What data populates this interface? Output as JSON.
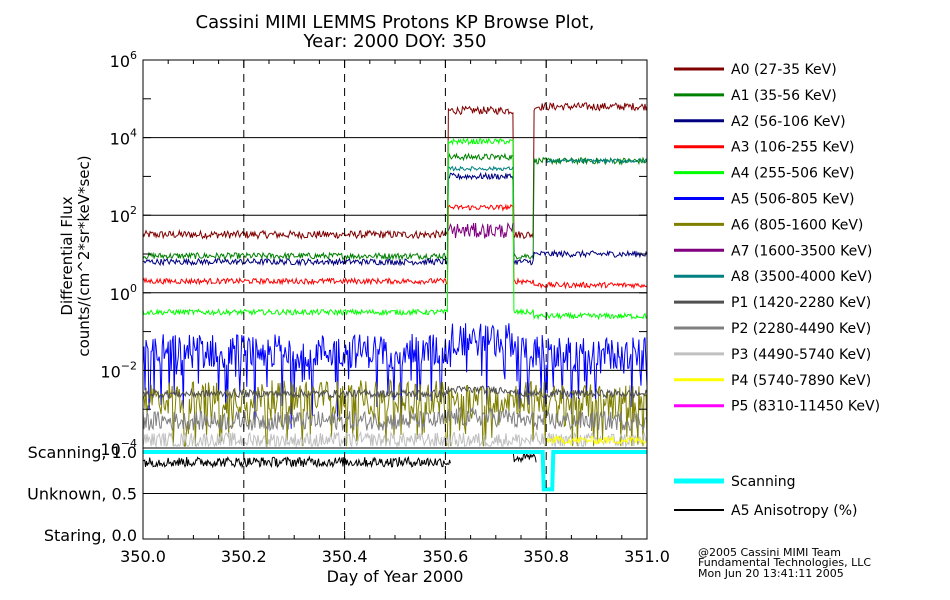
{
  "chart_data": {
    "type": "line",
    "title_line1": "Cassini MIMI LEMMS Protons KP Browse Plot,",
    "title_line2": "Year: 2000 DOY: 350",
    "ylabel_line1": "Differential Flux",
    "ylabel_line2": "counts/(cm^2*sr*keV*sec)",
    "xlabel": "Day of Year 2000",
    "xlim": [
      350.0,
      351.0
    ],
    "x_ticks": [
      "350.0",
      "350.2",
      "350.4",
      "350.6",
      "350.8",
      "351.0"
    ],
    "x_tick_values": [
      350.0,
      350.2,
      350.4,
      350.6,
      350.8,
      351.0
    ],
    "vertical_dashed_lines": [
      350.2,
      350.4,
      350.6,
      350.8
    ],
    "flux_panel": {
      "yscale": "log",
      "ylim_exponents": [
        -4,
        6
      ],
      "y_tick_labels": [
        {
          "exp": 6,
          "base": "10",
          "sup": "6"
        },
        {
          "exp": 4,
          "base": "10",
          "sup": "4"
        },
        {
          "exp": 2,
          "base": "10",
          "sup": "2"
        },
        {
          "exp": 0,
          "base": "10",
          "sup": "0"
        },
        {
          "exp": -2,
          "base": "10",
          "sup": "−2"
        },
        {
          "exp": -4,
          "base": "10",
          "sup": "−4"
        }
      ]
    },
    "mode_panel": {
      "ylim": [
        0.0,
        1.0
      ],
      "y_tick_labels": [
        {
          "value": 1.0,
          "label": "Scanning, 1.0"
        },
        {
          "value": 0.5,
          "label": "Unknown, 0.5"
        },
        {
          "value": 0.0,
          "label": "Staring, 0.0"
        }
      ]
    },
    "series": [
      {
        "name": "A0 (27-35 KeV)",
        "color": "#800000",
        "log_levels": [
          1.5,
          4.7,
          4.8
        ],
        "noise": 0.1
      },
      {
        "name": "A1 (35-56 KeV)",
        "color": "#008000",
        "log_levels": [
          0.95,
          3.5,
          3.4
        ],
        "noise": 0.08
      },
      {
        "name": "A2 (56-106 KeV)",
        "color": "#000080",
        "log_levels": [
          0.8,
          3.0,
          1.0
        ],
        "noise": 0.08
      },
      {
        "name": "A3 (106-255 KeV)",
        "color": "#ff0000",
        "log_levels": [
          0.3,
          2.2,
          0.2
        ],
        "noise": 0.07
      },
      {
        "name": "A4 (255-506 KeV)",
        "color": "#00ff00",
        "log_levels": [
          -0.5,
          3.9,
          -0.6
        ],
        "noise": 0.07
      },
      {
        "name": "A5 (506-805 KeV)",
        "color": "#0000ff",
        "log_levels": [
          -1.5,
          -1.2,
          -1.6
        ],
        "noise": 0.45
      },
      {
        "name": "A6 (805-1600 KeV)",
        "color": "#808000",
        "log_levels": [
          -2.7,
          -2.7,
          -2.8
        ],
        "noise": 0.45
      },
      {
        "name": "A7 (1600-3500 KeV)",
        "color": "#800080",
        "log_levels": [
          null,
          1.6,
          null
        ],
        "noise": 0.2
      },
      {
        "name": "A8 (3500-4000 KeV)",
        "color": "#008080",
        "log_levels": [
          null,
          3.2,
          3.4
        ],
        "noise": 0.05
      },
      {
        "name": "P1 (1420-2280 KeV)",
        "color": "#505050",
        "log_levels": [
          -2.6,
          -2.5,
          -2.6
        ],
        "noise": 0.1
      },
      {
        "name": "P2 (2280-4490 KeV)",
        "color": "#808080",
        "log_levels": [
          -3.3,
          -3.2,
          -3.3
        ],
        "noise": 0.25
      },
      {
        "name": "P3 (4490-5740 KeV)",
        "color": "#c0c0c0",
        "log_levels": [
          -3.8,
          -3.8,
          -3.8
        ],
        "noise": 0.2
      },
      {
        "name": "P4 (5740-7890 KeV)",
        "color": "#ffff00",
        "log_levels": [
          null,
          null,
          -3.8
        ],
        "noise": 0.1
      },
      {
        "name": "P5 (8310-11450 KeV)",
        "color": "#ff00ff",
        "log_levels": [
          null,
          null,
          null
        ],
        "noise": 0.1
      }
    ],
    "scanning": {
      "name": "Scanning",
      "color": "#00ffff",
      "points": [
        [
          350.0,
          1.0
        ],
        [
          350.793,
          1.0
        ],
        [
          350.795,
          0.55
        ],
        [
          350.812,
          0.55
        ],
        [
          350.814,
          1.0
        ],
        [
          351.0,
          1.0
        ]
      ]
    },
    "anisotropy": {
      "name": "A5 Anisotropy (%)",
      "color": "#000000",
      "segments": [
        [
          350.0,
          350.61,
          0.88
        ],
        [
          350.735,
          350.78,
          0.93
        ]
      ]
    }
  },
  "credits": {
    "line1": "@2005 Cassini MIMI Team",
    "line2": "Fundamental Technologies, LLC",
    "line3": "Mon Jun 20 13:41:11 2005"
  }
}
